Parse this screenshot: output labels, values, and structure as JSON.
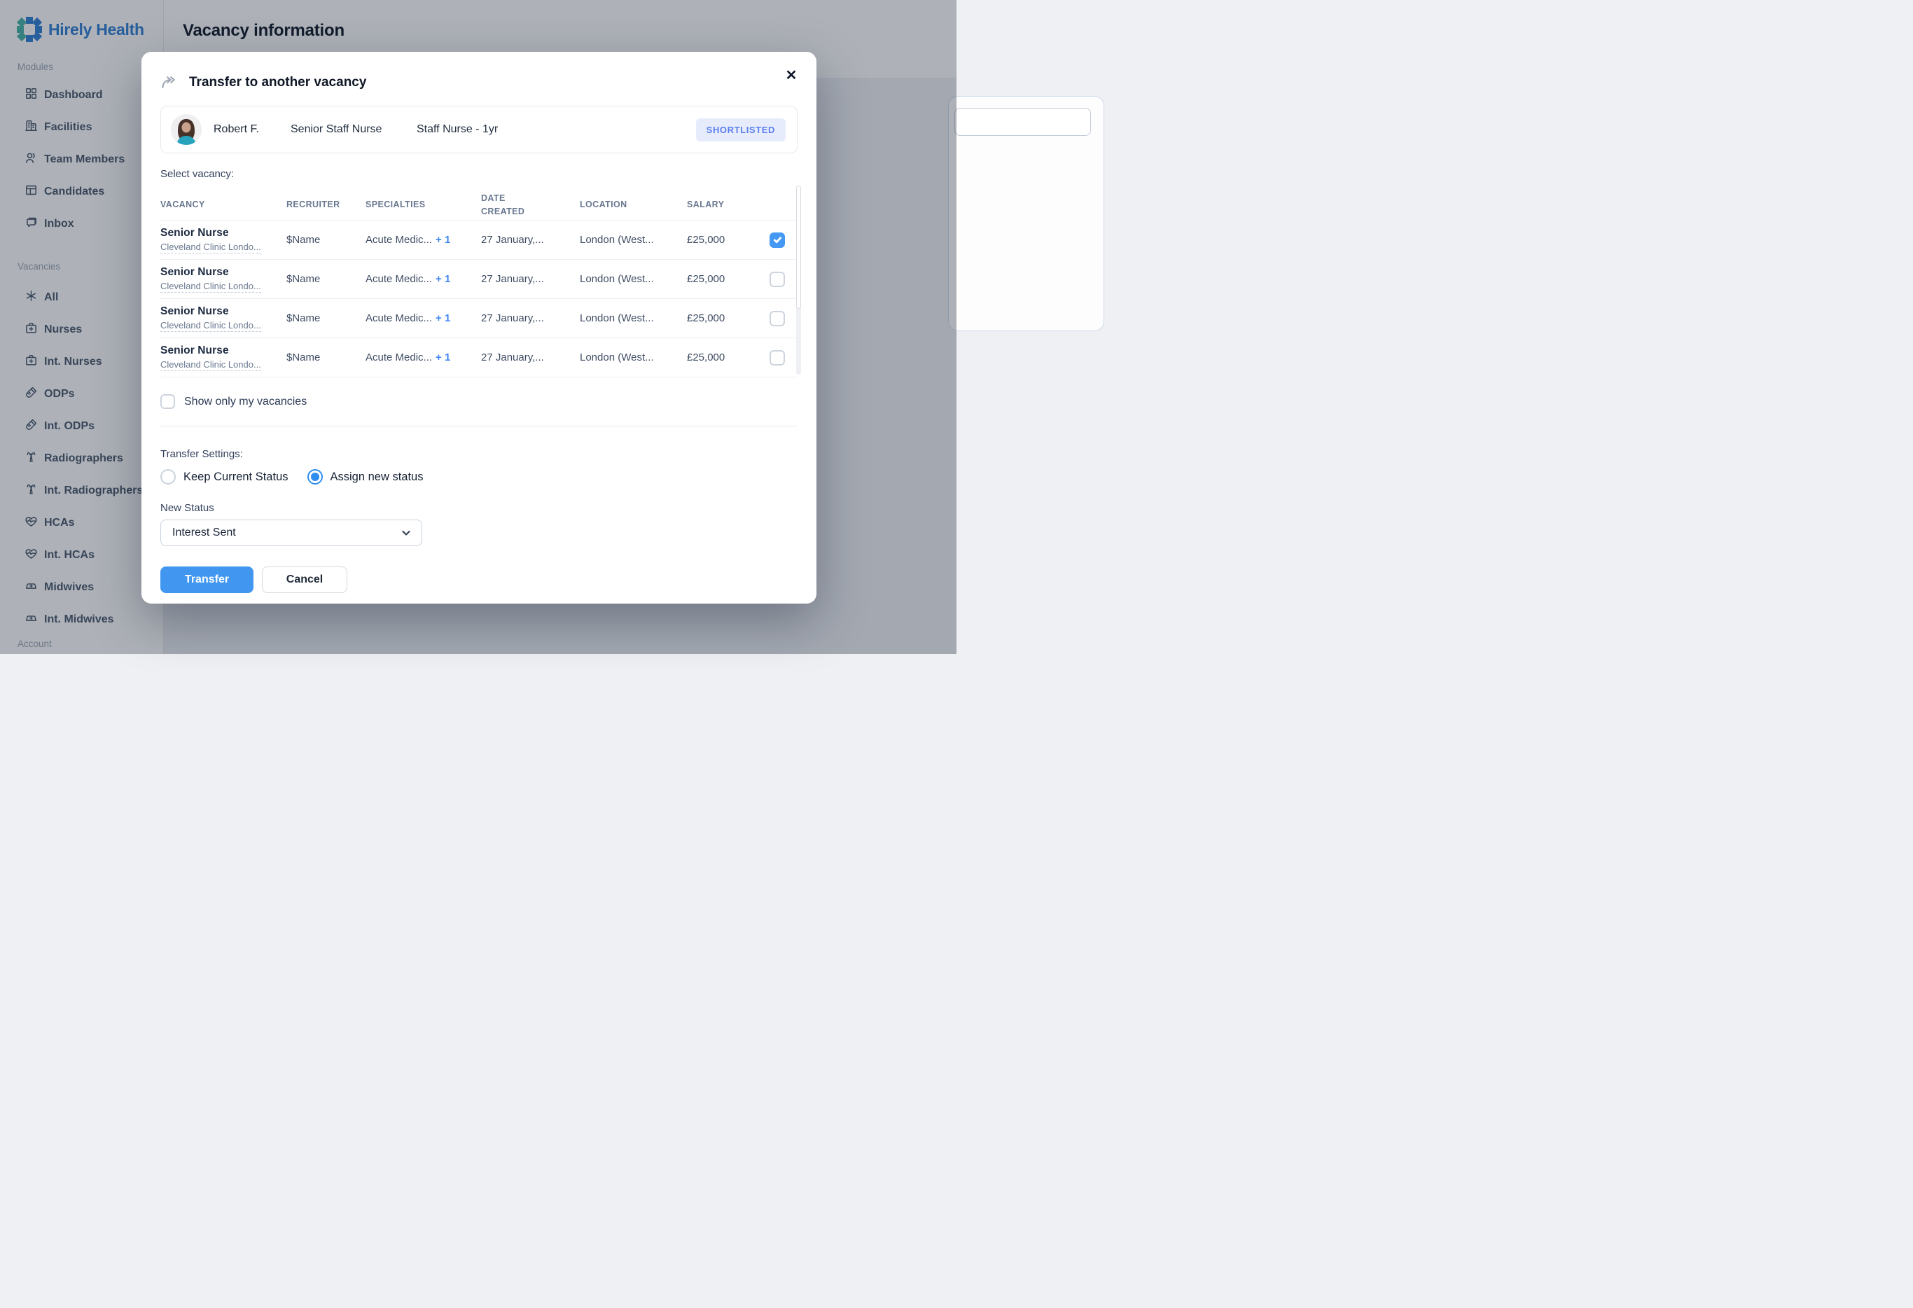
{
  "brand": {
    "name": "Hirely Health"
  },
  "page": {
    "title": "Vacancy information"
  },
  "sidebar": {
    "sections": [
      {
        "label": "Modules",
        "items": [
          {
            "icon": "dashboard-icon",
            "label": "Dashboard"
          },
          {
            "icon": "facilities-icon",
            "label": "Facilities"
          },
          {
            "icon": "team-members-icon",
            "label": "Team Members"
          },
          {
            "icon": "candidates-icon",
            "label": "Candidates"
          },
          {
            "icon": "inbox-icon",
            "label": "Inbox"
          }
        ]
      },
      {
        "label": "Vacancies",
        "items": [
          {
            "icon": "all-icon",
            "label": "All"
          },
          {
            "icon": "nurses-icon",
            "label": "Nurses"
          },
          {
            "icon": "nurses-icon",
            "label": "Int. Nurses"
          },
          {
            "icon": "odp-icon",
            "label": "ODPs"
          },
          {
            "icon": "odp-icon",
            "label": "Int. ODPs"
          },
          {
            "icon": "radiographer-icon",
            "label": "Radiographers"
          },
          {
            "icon": "radiographer-icon",
            "label": "Int. Radiographers"
          },
          {
            "icon": "hca-icon",
            "label": "HCAs"
          },
          {
            "icon": "hca-icon",
            "label": "Int. HCAs"
          },
          {
            "icon": "midwife-icon",
            "label": "Midwives"
          },
          {
            "icon": "midwife-icon",
            "label": "Int. Midwives"
          }
        ]
      }
    ],
    "account_label": "Account"
  },
  "modal": {
    "title": "Transfer to another vacancy",
    "close_icon": "✕",
    "candidate": {
      "name": "Robert F.",
      "role": "Senior Staff Nurse",
      "vacancy": "Staff Nurse - 1yr",
      "status_badge": "SHORTLISTED"
    },
    "select_label": "Select vacancy:",
    "table": {
      "headers": [
        "VACANCY",
        "RECRUITER",
        "SPECIALTIES",
        "DATE CREATED",
        "LOCATION",
        "SALARY"
      ],
      "rows": [
        {
          "title": "Senior  Nurse",
          "subtitle": "Cleveland Clinic Londo...",
          "recruiter": "$Name",
          "specialties": "Acute Medic...",
          "specialties_extra": "+ 1",
          "date_created": "27 January,...",
          "location": "London (West...",
          "salary": "£25,000",
          "selected": true
        },
        {
          "title": "Senior  Nurse",
          "subtitle": "Cleveland Clinic Londo...",
          "recruiter": "$Name",
          "specialties": "Acute Medic...",
          "specialties_extra": "+ 1",
          "date_created": "27 January,...",
          "location": "London (West...",
          "salary": "£25,000",
          "selected": false
        },
        {
          "title": "Senior  Nurse",
          "subtitle": "Cleveland Clinic Londo...",
          "recruiter": "$Name",
          "specialties": "Acute Medic...",
          "specialties_extra": "+ 1",
          "date_created": "27 January,...",
          "location": "London (West...",
          "salary": "£25,000",
          "selected": false
        },
        {
          "title": "Senior  Nurse",
          "subtitle": "Cleveland Clinic Londo...",
          "recruiter": "$Name",
          "specialties": "Acute Medic...",
          "specialties_extra": "+ 1",
          "date_created": "27 January,...",
          "location": "London (West...",
          "salary": "£25,000",
          "selected": false
        }
      ]
    },
    "show_only": {
      "label": "Show only my vacancies",
      "checked": false
    },
    "transfer_settings_label": "Transfer Settings:",
    "radio_options": [
      {
        "label": "Keep Current Status",
        "selected": false
      },
      {
        "label": "Assign new status",
        "selected": true
      }
    ],
    "new_status_label": "New Status",
    "new_status_value": "Interest Sent",
    "buttons": {
      "transfer": "Transfer",
      "cancel": "Cancel"
    }
  },
  "colors": {
    "accent_blue": "#4197f0",
    "badge_text": "#5b7ff0",
    "badge_bg": "#e7ecfd",
    "brand_blue": "#2d7cd4",
    "brand_teal": "#45b1a8"
  }
}
